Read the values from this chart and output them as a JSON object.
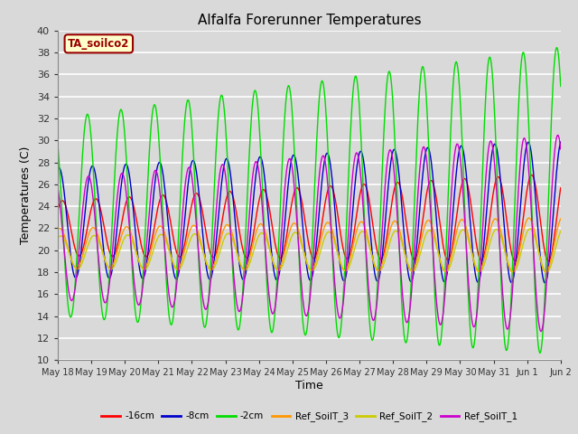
{
  "title": "Alfalfa Forerunner Temperatures",
  "xlabel": "Time",
  "ylabel": "Temperatures (C)",
  "ylim": [
    10,
    40
  ],
  "annotation_text": "TA_soilco2",
  "annotation_bbox": {
    "boxstyle": "round,pad=0.3",
    "fc": "#ffffcc",
    "ec": "#990000",
    "lw": 1.5
  },
  "series": {
    "neg16cm": {
      "label": "-16cm",
      "color": "#ff0000"
    },
    "neg8cm": {
      "label": "-8cm",
      "color": "#0000cc"
    },
    "neg2cm": {
      "label": "-2cm",
      "color": "#00dd00"
    },
    "ref3": {
      "label": "Ref_SoilT_3",
      "color": "#ff9900"
    },
    "ref2": {
      "label": "Ref_SoilT_2",
      "color": "#cccc00"
    },
    "ref1": {
      "label": "Ref_SoilT_1",
      "color": "#cc00cc"
    }
  },
  "background_color": "#d9d9d9",
  "plot_bg_color": "#d9d9d9",
  "grid_color": "#ffffff",
  "n_days": 15,
  "start_day": 18,
  "phase_offsets": {
    "neg16cm": 0.3,
    "neg8cm": 0.2,
    "neg2cm": 0.05,
    "ref3": 0.22,
    "ref2": 0.25,
    "ref1": 0.08
  },
  "amp_start": {
    "neg16cm": 2.5,
    "neg8cm": 5.0,
    "neg2cm": 9.0,
    "ref3": 1.8,
    "ref2": 1.5,
    "ref1": 5.5
  },
  "amp_end": {
    "neg16cm": 4.0,
    "neg8cm": 6.5,
    "neg2cm": 14.0,
    "ref3": 2.5,
    "ref2": 2.0,
    "ref1": 9.0
  },
  "mean_start": {
    "neg16cm": 22.0,
    "neg8cm": 22.5,
    "neg2cm": 23.0,
    "ref3": 20.2,
    "ref2": 19.8,
    "ref1": 21.0
  },
  "mean_end": {
    "neg16cm": 23.0,
    "neg8cm": 23.5,
    "neg2cm": 24.5,
    "ref3": 20.5,
    "ref2": 20.0,
    "ref1": 21.5
  }
}
